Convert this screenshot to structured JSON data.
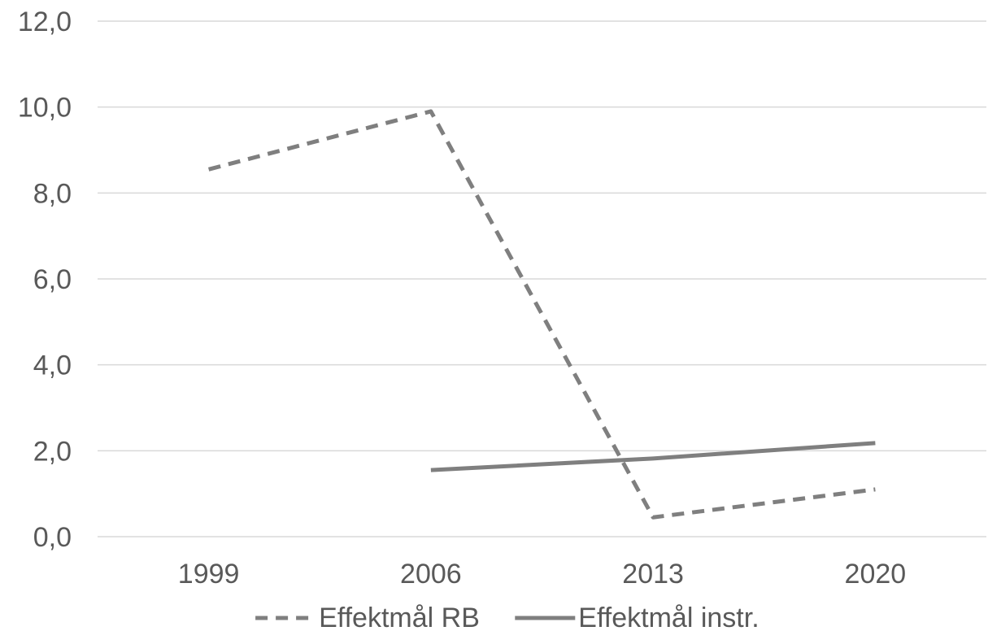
{
  "chart_data": {
    "type": "line",
    "title": "",
    "xlabel": "",
    "ylabel": "",
    "categories": [
      "1999",
      "2006",
      "2013",
      "2020"
    ],
    "ylim": [
      0,
      12
    ],
    "yticks": [
      "0,0",
      "2,0",
      "4,0",
      "6,0",
      "8,0",
      "10,0",
      "12,0"
    ],
    "grid": true,
    "legend_position": "bottom",
    "series": [
      {
        "name": "Effektmål RB",
        "style": "dashed",
        "color": "#7f7f7f",
        "values": [
          8.55,
          9.9,
          0.45,
          1.1
        ]
      },
      {
        "name": "Effektmål instr.",
        "style": "solid",
        "color": "#7f7f7f",
        "values": [
          null,
          1.55,
          1.82,
          2.18
        ]
      }
    ]
  }
}
